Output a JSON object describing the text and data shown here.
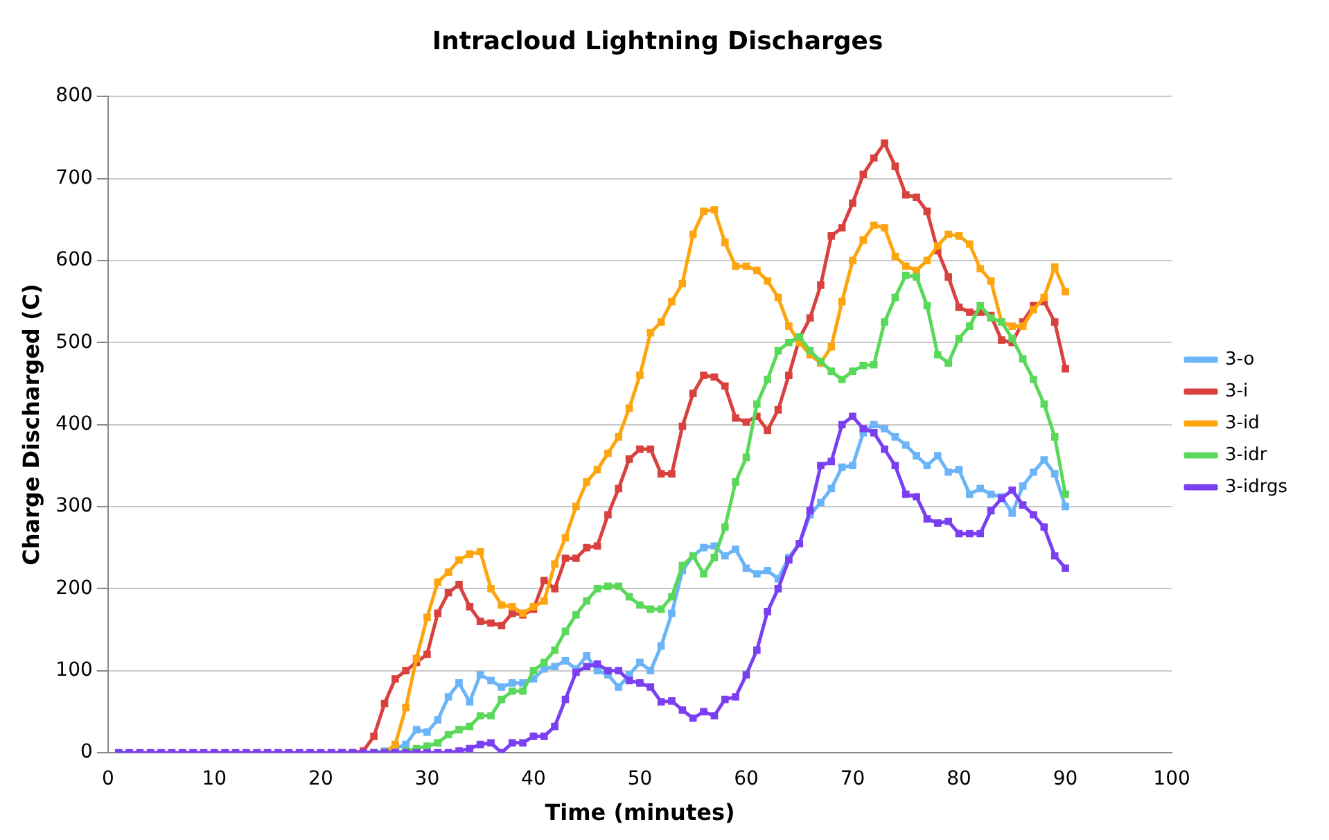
{
  "chart_data": {
    "type": "line",
    "title": "Intracloud Lightning Discharges",
    "xlabel": "Time (minutes)",
    "ylabel": "Charge Discharged (C)",
    "x": [
      1,
      2,
      3,
      4,
      5,
      6,
      7,
      8,
      9,
      10,
      11,
      12,
      13,
      14,
      15,
      16,
      17,
      18,
      19,
      20,
      21,
      22,
      23,
      24,
      25,
      26,
      27,
      28,
      29,
      30,
      31,
      32,
      33,
      34,
      35,
      36,
      37,
      38,
      39,
      40,
      41,
      42,
      43,
      44,
      45,
      46,
      47,
      48,
      49,
      50,
      51,
      52,
      53,
      54,
      55,
      56,
      57,
      58,
      59,
      60,
      61,
      62,
      63,
      64,
      65,
      66,
      67,
      68,
      69,
      70,
      71,
      72,
      73,
      74,
      75,
      76,
      77,
      78,
      79,
      80,
      81,
      82,
      83,
      84,
      85,
      86,
      87,
      88,
      89,
      90
    ],
    "series": [
      {
        "name": "3-o",
        "color": "#6cb4f8",
        "values": [
          null,
          null,
          null,
          null,
          null,
          null,
          null,
          null,
          null,
          null,
          null,
          null,
          null,
          null,
          null,
          null,
          null,
          null,
          null,
          null,
          null,
          null,
          null,
          0,
          0,
          2,
          5,
          10,
          28,
          25,
          40,
          68,
          85,
          62,
          95,
          88,
          80,
          85,
          85,
          90,
          102,
          105,
          112,
          102,
          118,
          100,
          95,
          80,
          95,
          110,
          100,
          130,
          170,
          222,
          240,
          250,
          252,
          240,
          248,
          225,
          218,
          222,
          212,
          238,
          255,
          290,
          305,
          322,
          348,
          350,
          390,
          400,
          395,
          385,
          375,
          362,
          350,
          362,
          342,
          345,
          315,
          322,
          315,
          312,
          292,
          325,
          342,
          357,
          340,
          300
        ]
      },
      {
        "name": "3-i",
        "color": "#d9413e",
        "values": [
          null,
          null,
          null,
          null,
          null,
          null,
          null,
          null,
          null,
          null,
          null,
          null,
          null,
          null,
          null,
          null,
          null,
          null,
          null,
          null,
          null,
          0,
          0,
          2,
          20,
          60,
          90,
          100,
          110,
          120,
          170,
          195,
          205,
          178,
          160,
          158,
          155,
          170,
          168,
          175,
          210,
          200,
          237,
          237,
          250,
          252,
          290,
          322,
          358,
          370,
          370,
          340,
          340,
          398,
          438,
          460,
          458,
          447,
          408,
          403,
          410,
          393,
          418,
          460,
          505,
          530,
          570,
          630,
          640,
          670,
          705,
          725,
          743,
          715,
          680,
          677,
          660,
          612,
          580,
          543,
          537,
          537,
          533,
          503,
          500,
          525,
          545,
          550,
          525,
          468
        ]
      },
      {
        "name": "3-id",
        "color": "#fda50f",
        "values": [
          null,
          null,
          null,
          null,
          null,
          null,
          null,
          null,
          null,
          null,
          null,
          null,
          null,
          null,
          null,
          null,
          null,
          null,
          null,
          null,
          null,
          null,
          null,
          null,
          0,
          0,
          10,
          55,
          115,
          165,
          208,
          220,
          235,
          242,
          245,
          200,
          180,
          178,
          170,
          178,
          185,
          230,
          262,
          300,
          330,
          345,
          365,
          385,
          420,
          460,
          512,
          525,
          550,
          572,
          632,
          660,
          662,
          622,
          593,
          593,
          588,
          575,
          555,
          520,
          500,
          485,
          475,
          495,
          550,
          600,
          625,
          643,
          640,
          605,
          593,
          588,
          600,
          618,
          632,
          630,
          620,
          590,
          575,
          525,
          520,
          520,
          540,
          555,
          592,
          562
        ]
      },
      {
        "name": "3-idr",
        "color": "#5ad85a",
        "values": [
          null,
          null,
          null,
          null,
          null,
          null,
          null,
          null,
          null,
          null,
          null,
          null,
          null,
          null,
          null,
          null,
          null,
          null,
          null,
          null,
          null,
          null,
          null,
          null,
          null,
          0,
          0,
          2,
          5,
          8,
          12,
          22,
          28,
          32,
          45,
          45,
          65,
          75,
          75,
          100,
          110,
          125,
          148,
          168,
          185,
          200,
          203,
          203,
          190,
          180,
          175,
          175,
          190,
          228,
          240,
          218,
          238,
          275,
          330,
          360,
          425,
          455,
          490,
          500,
          507,
          490,
          477,
          465,
          455,
          465,
          472,
          473,
          525,
          555,
          582,
          580,
          545,
          485,
          475,
          505,
          520,
          545,
          530,
          525,
          505,
          480,
          455,
          425,
          385,
          315
        ]
      },
      {
        "name": "3-idrgs",
        "color": "#7b3ff2",
        "values": [
          0,
          0,
          0,
          0,
          0,
          0,
          0,
          0,
          0,
          0,
          0,
          0,
          0,
          0,
          0,
          0,
          0,
          0,
          0,
          0,
          0,
          0,
          0,
          0,
          0,
          0,
          0,
          0,
          0,
          0,
          0,
          0,
          2,
          5,
          10,
          12,
          0,
          12,
          12,
          20,
          20,
          32,
          65,
          98,
          105,
          108,
          100,
          100,
          88,
          85,
          80,
          62,
          63,
          52,
          42,
          50,
          45,
          65,
          68,
          95,
          125,
          172,
          200,
          235,
          255,
          295,
          350,
          355,
          400,
          410,
          395,
          390,
          370,
          350,
          315,
          312,
          285,
          280,
          282,
          267,
          267,
          267,
          295,
          310,
          320,
          302,
          290,
          275,
          240,
          225
        ]
      }
    ],
    "xlim": [
      0,
      100
    ],
    "xticks": [
      0,
      10,
      20,
      30,
      40,
      50,
      60,
      70,
      80,
      90,
      100
    ],
    "ylim": [
      0,
      800
    ],
    "yticks": [
      0,
      100,
      200,
      300,
      400,
      500,
      600,
      700,
      800
    ],
    "grid": "y",
    "legend": "right",
    "marker": "square",
    "line_style": "solid"
  }
}
